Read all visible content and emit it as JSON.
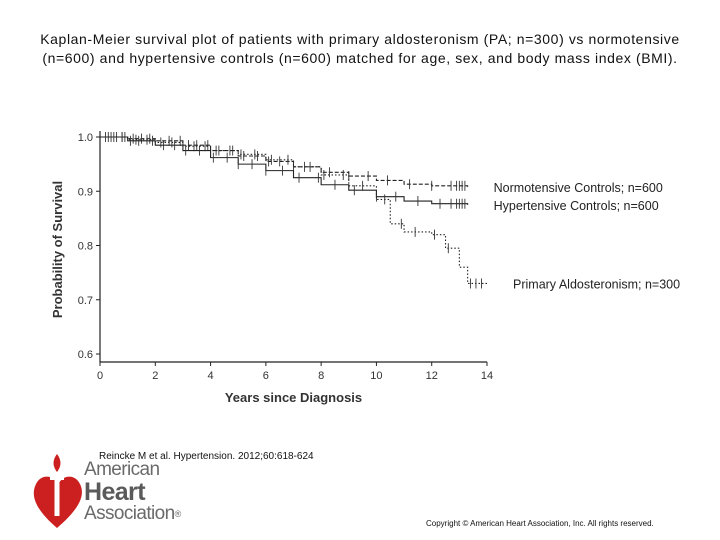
{
  "title": "Kaplan-Meier survival plot of patients with primary aldosteronism (PA; n=300) vs normotensive (n=600) and hypertensive controls (n=600) matched for age, sex, and body mass index (BMI).",
  "chart_data": {
    "type": "line",
    "title": "Kaplan-Meier survival plot",
    "xlabel": "Years since Diagnosis",
    "ylabel": "Probability of Survival",
    "xlim": [
      0,
      14
    ],
    "ylim": [
      0.6,
      1.0
    ],
    "x_ticks": [
      0,
      2,
      4,
      6,
      8,
      10,
      12,
      14
    ],
    "y_ticks": [
      0.6,
      0.7,
      0.8,
      0.9,
      1.0
    ],
    "x_tick_labels": [
      "0",
      "2",
      "4",
      "6",
      "8",
      "10",
      "12",
      "14"
    ],
    "y_tick_labels": [
      "0.6",
      "0.7",
      "0.8",
      "0.9",
      "1.0"
    ],
    "series": [
      {
        "name": "Normotensive Controls; n=600",
        "style": "dashed",
        "points": [
          [
            0,
            1.0
          ],
          [
            1,
            0.997
          ],
          [
            2,
            0.993
          ],
          [
            3,
            0.985
          ],
          [
            4,
            0.975
          ],
          [
            5,
            0.965
          ],
          [
            6,
            0.955
          ],
          [
            7,
            0.945
          ],
          [
            8,
            0.935
          ],
          [
            9,
            0.928
          ],
          [
            10,
            0.92
          ],
          [
            11,
            0.913
          ],
          [
            12,
            0.91
          ],
          [
            13.3,
            0.908
          ]
        ],
        "censor_x": [
          0.3,
          0.6,
          0.9,
          1.2,
          1.5,
          1.8,
          2.5,
          2.9,
          3.2,
          3.5,
          3.9,
          4.3,
          4.8,
          5.2,
          5.7,
          6.1,
          6.5,
          7.0,
          7.6,
          8.3,
          9.0,
          9.7,
          10.4,
          11.2,
          12.0,
          12.7,
          12.9,
          13.0,
          13.1,
          13.2
        ]
      },
      {
        "name": "Hypertensive Controls; n=600",
        "style": "solid",
        "points": [
          [
            0,
            1.0
          ],
          [
            1,
            0.993
          ],
          [
            2,
            0.985
          ],
          [
            3,
            0.975
          ],
          [
            4,
            0.962
          ],
          [
            5,
            0.95
          ],
          [
            6,
            0.938
          ],
          [
            7,
            0.925
          ],
          [
            8,
            0.912
          ],
          [
            9,
            0.902
          ],
          [
            10,
            0.89
          ],
          [
            11,
            0.882
          ],
          [
            12,
            0.877
          ],
          [
            13.3,
            0.875
          ]
        ],
        "censor_x": [
          0.2,
          0.5,
          0.8,
          1.1,
          1.4,
          1.9,
          2.3,
          2.7,
          3.1,
          3.6,
          4.1,
          4.6,
          5.0,
          5.5,
          6.0,
          6.6,
          7.2,
          7.9,
          8.5,
          9.2,
          10.0,
          10.7,
          11.5,
          12.3,
          12.7,
          12.9,
          13.0,
          13.1,
          13.2
        ]
      },
      {
        "name": "Primary Aldosteronism; n=300",
        "style": "dotted",
        "points": [
          [
            0,
            1.0
          ],
          [
            1,
            0.995
          ],
          [
            2,
            0.99
          ],
          [
            3,
            0.983
          ],
          [
            4,
            0.975
          ],
          [
            5,
            0.968
          ],
          [
            6,
            0.958
          ],
          [
            7,
            0.945
          ],
          [
            8,
            0.93
          ],
          [
            9,
            0.91
          ],
          [
            10,
            0.885
          ],
          [
            10.5,
            0.84
          ],
          [
            11,
            0.825
          ],
          [
            12,
            0.82
          ],
          [
            12.5,
            0.795
          ],
          [
            13,
            0.76
          ],
          [
            13.3,
            0.73
          ],
          [
            14,
            0.73
          ]
        ],
        "censor_x": [
          0.4,
          0.8,
          1.3,
          1.7,
          2.2,
          2.6,
          3.0,
          3.4,
          3.8,
          4.2,
          4.7,
          5.1,
          5.6,
          6.2,
          6.8,
          7.4,
          8.1,
          8.8,
          9.5,
          10.3,
          10.9,
          11.4,
          12.1,
          12.6,
          13.4,
          13.6,
          13.8
        ]
      }
    ]
  },
  "citation": "Reincke M et al. Hypertension. 2012;60:618-624",
  "copyright": "Copyright © American Heart Association, Inc. All rights reserved.",
  "logo": {
    "line1": "American",
    "line2": "Heart",
    "line3": "Association",
    "mark": "®",
    "torch_color": "#cc1f1f"
  }
}
